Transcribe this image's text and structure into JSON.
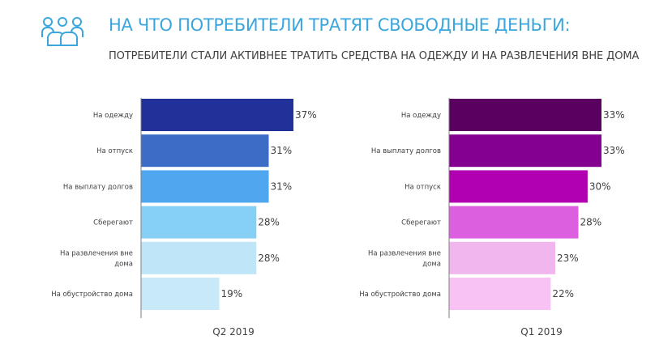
{
  "header": {
    "icon": "people-group-icon",
    "icon_color": "#3aa6dd",
    "title": "НА ЧТО ПОТРЕБИТЕЛИ ТРАТЯТ СВОБОДНЫЕ ДЕНЬГИ:",
    "subtitle": "ПОТРЕБИТЕЛИ СТАЛИ АКТИВНЕЕ ТРАТИТЬ СРЕДСТВА НА ОДЕЖДУ И НА РАЗВЛЕЧЕНИЯ ВНЕ ДОМА"
  },
  "chart_data": [
    {
      "type": "bar",
      "orientation": "horizontal",
      "xlabel": "Q2 2019",
      "ylabel": "",
      "xlim": [
        0,
        40
      ],
      "grid": false,
      "categories": [
        "На одежду",
        "На отпуск",
        "На выплату долгов",
        "Сберегают",
        "На развлечения вне дома",
        "На обустройство дома"
      ],
      "category_lines": [
        [
          "На одежду"
        ],
        [
          "На отпуск"
        ],
        [
          "На выплату долгов"
        ],
        [
          "Сберегают"
        ],
        [
          "На развлечения вне",
          "дома"
        ],
        [
          "На обустройство дома"
        ]
      ],
      "values": [
        37,
        31,
        31,
        28,
        28,
        19
      ],
      "labels": [
        "37%",
        "31%",
        "31%",
        "28%",
        "28%",
        "19%"
      ],
      "colors": [
        "#22309a",
        "#3b6cc6",
        "#4ea7ef",
        "#86d0f6",
        "#bfe6f8",
        "#c8e9f7"
      ]
    },
    {
      "type": "bar",
      "orientation": "horizontal",
      "xlabel": "Q1 2019",
      "ylabel": "",
      "xlim": [
        0,
        40
      ],
      "grid": false,
      "categories": [
        "На одежду",
        "На выплату долгов",
        "На отпуск",
        "Сберегают",
        "На развлечения вне дома",
        "На обустройство дома"
      ],
      "category_lines": [
        [
          "На одежду"
        ],
        [
          "На выплату долгов"
        ],
        [
          "На отпуск"
        ],
        [
          "Сберегают"
        ],
        [
          "На развлечения вне",
          "дома"
        ],
        [
          "На обустройство дома"
        ]
      ],
      "values": [
        33,
        33,
        30,
        28,
        23,
        22
      ],
      "labels": [
        "33%",
        "33%",
        "30%",
        "28%",
        "23%",
        "22%"
      ],
      "colors": [
        "#5a0060",
        "#840090",
        "#b000b0",
        "#dc5fe0",
        "#f2b6ee",
        "#f8c2f5"
      ]
    }
  ]
}
